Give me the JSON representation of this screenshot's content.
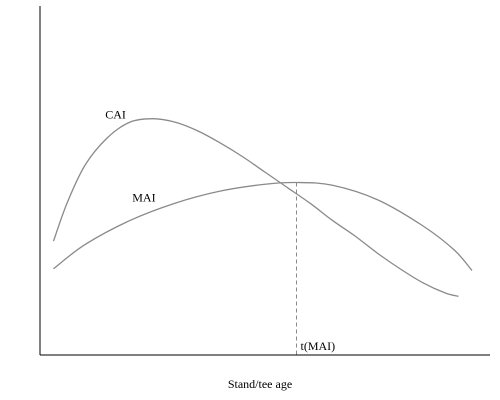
{
  "chart_data": {
    "type": "line",
    "title": "",
    "xlabel": "Stand/tee age",
    "ylabel": "",
    "xlim": [
      0,
      100
    ],
    "ylim": [
      0,
      100
    ],
    "grid": false,
    "legend": "none",
    "series": [
      {
        "name": "CAI",
        "color": "#8a8a8a",
        "x": [
          3,
          6,
          10,
          15,
          20,
          25,
          30,
          35,
          40,
          45,
          50,
          55,
          60,
          65,
          70,
          75,
          80,
          85,
          90,
          93
        ],
        "y": [
          33,
          44,
          55,
          63,
          67.5,
          68.5,
          67.5,
          65,
          61.5,
          57.5,
          53,
          48.5,
          44,
          39,
          34.5,
          29.5,
          25,
          21,
          18,
          17
        ]
      },
      {
        "name": "MAI",
        "color": "#8a8a8a",
        "x": [
          3,
          10,
          20,
          30,
          40,
          50,
          57,
          65,
          75,
          85,
          92,
          96
        ],
        "y": [
          25,
          32,
          39,
          44,
          47.5,
          49.5,
          50,
          49.2,
          45,
          37.5,
          30.5,
          24.5
        ]
      }
    ],
    "annotations": [
      {
        "text": "t(MAI)",
        "x": 57,
        "y": 50
      }
    ]
  }
}
